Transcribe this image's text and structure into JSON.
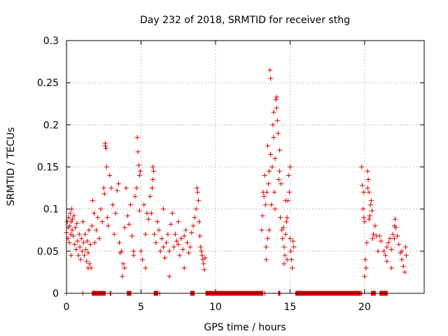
{
  "chart_data": {
    "type": "scatter",
    "title": "Day 232 of 2018, SRMTID for receiver sthg",
    "xlabel": "GPS time / hours",
    "ylabel": "SRMTID / TECUs",
    "xlim": [
      0,
      24
    ],
    "ylim": [
      0,
      0.3
    ],
    "grid": true,
    "marker": "+",
    "color": "#e00000",
    "x_ticks": [
      0,
      5,
      10,
      15,
      20
    ],
    "x_tick_labels": [
      "0",
      "5",
      "10",
      "15",
      "20"
    ],
    "y_ticks": [
      0,
      0.05,
      0.1,
      0.15,
      0.2,
      0.25,
      0.3
    ],
    "y_tick_labels": [
      "0",
      "0.05",
      "0.1",
      "0.15",
      "0.2",
      "0.25",
      "0.3"
    ],
    "series": [
      {
        "name": "SRMTID",
        "points": [
          [
            0.0,
            0.072
          ],
          [
            0.05,
            0.085
          ],
          [
            0.1,
            0.065
          ],
          [
            0.12,
            0.078
          ],
          [
            0.15,
            0.09
          ],
          [
            0.2,
            0.06
          ],
          [
            0.22,
            0.08
          ],
          [
            0.25,
            0.095
          ],
          [
            0.3,
            0.07
          ],
          [
            0.32,
            0.085
          ],
          [
            0.35,
            0.1
          ],
          [
            0.38,
            0.075
          ],
          [
            0.4,
            0.088
          ],
          [
            0.45,
            0.068
          ],
          [
            0.5,
            0.092
          ],
          [
            0.55,
            0.058
          ],
          [
            0.6,
            0.078
          ],
          [
            0.65,
            0.052
          ],
          [
            0.7,
            0.083
          ],
          [
            0.75,
            0.062
          ],
          [
            0.8,
            0.045
          ],
          [
            0.85,
            0.07
          ],
          [
            0.9,
            0.055
          ],
          [
            0.95,
            0.04
          ],
          [
            1.0,
            0.065
          ],
          [
            1.05,
            0.05
          ],
          [
            1.1,
            0.085
          ],
          [
            1.15,
            0.06
          ],
          [
            1.2,
            0.045
          ],
          [
            1.25,
            0.07
          ],
          [
            1.3,
            0.052
          ],
          [
            1.35,
            0.038
          ],
          [
            1.4,
            0.062
          ],
          [
            1.45,
            0.048
          ],
          [
            1.5,
            0.075
          ],
          [
            1.55,
            0.035
          ],
          [
            1.6,
            0.058
          ],
          [
            1.65,
            0.03
          ],
          [
            1.7,
            0.08
          ],
          [
            1.75,
            0.11
          ],
          [
            1.85,
            0.095
          ],
          [
            1.9,
            0.06
          ],
          [
            2.0,
            0.075
          ],
          [
            2.1,
            0.09
          ],
          [
            2.2,
            0.065
          ],
          [
            2.3,
            0.1
          ],
          [
            2.4,
            0.085
          ],
          [
            2.5,
            0.125
          ],
          [
            2.55,
            0.118
          ],
          [
            2.6,
            0.175
          ],
          [
            2.65,
            0.172
          ],
          [
            2.7,
            0.15
          ],
          [
            2.75,
            0.09
          ],
          [
            2.8,
            0.08
          ],
          [
            2.9,
            0.14
          ],
          [
            3.0,
            0.125
          ],
          [
            3.1,
            0.105
          ],
          [
            3.2,
            0.07
          ],
          [
            3.3,
            0.095
          ],
          [
            3.4,
            0.122
          ],
          [
            3.5,
            0.13
          ],
          [
            3.55,
            0.06
          ],
          [
            3.6,
            0.048
          ],
          [
            3.7,
            0.05
          ],
          [
            3.75,
            0.02
          ],
          [
            3.8,
            0.035
          ],
          [
            3.9,
            0.078
          ],
          [
            4.0,
            0.125
          ],
          [
            4.1,
            0.092
          ],
          [
            4.2,
            0.082
          ],
          [
            4.3,
            0.105
          ],
          [
            4.4,
            0.068
          ],
          [
            4.5,
            0.05
          ],
          [
            4.6,
            0.115
          ],
          [
            4.7,
            0.125
          ],
          [
            4.75,
            0.185
          ],
          [
            4.8,
            0.168
          ],
          [
            4.85,
            0.152
          ],
          [
            4.9,
            0.14
          ],
          [
            4.95,
            0.145
          ],
          [
            5.0,
            0.05
          ],
          [
            5.1,
            0.04
          ],
          [
            5.2,
            0.105
          ],
          [
            5.3,
            0.07
          ],
          [
            5.4,
            0.095
          ],
          [
            5.5,
            0.088
          ],
          [
            5.6,
            0.115
          ],
          [
            5.7,
            0.095
          ],
          [
            5.75,
            0.125
          ],
          [
            5.8,
            0.15
          ],
          [
            5.85,
            0.145
          ],
          [
            5.9,
            0.07
          ],
          [
            6.0,
            0.06
          ],
          [
            6.1,
            0.085
          ],
          [
            6.2,
            0.075
          ],
          [
            6.3,
            0.05
          ],
          [
            6.4,
            0.065
          ],
          [
            6.5,
            0.055
          ],
          [
            6.6,
            0.042
          ],
          [
            6.7,
            0.06
          ],
          [
            6.8,
            0.07
          ],
          [
            6.9,
            0.05
          ],
          [
            7.0,
            0.082
          ],
          [
            7.1,
            0.095
          ],
          [
            7.2,
            0.055
          ],
          [
            7.3,
            0.07
          ],
          [
            7.4,
            0.062
          ],
          [
            7.5,
            0.058
          ],
          [
            7.6,
            0.045
          ],
          [
            7.7,
            0.065
          ],
          [
            7.8,
            0.052
          ],
          [
            7.9,
            0.068
          ],
          [
            8.0,
            0.075
          ],
          [
            8.1,
            0.06
          ],
          [
            8.2,
            0.048
          ],
          [
            8.3,
            0.055
          ],
          [
            8.4,
            0.072
          ],
          [
            8.5,
            0.08
          ],
          [
            8.6,
            0.09
          ],
          [
            8.7,
            0.1
          ],
          [
            8.75,
            0.125
          ],
          [
            8.8,
            0.12
          ],
          [
            8.85,
            0.11
          ],
          [
            8.9,
            0.085
          ],
          [
            8.95,
            0.068
          ],
          [
            9.0,
            0.055
          ],
          [
            9.05,
            0.05
          ],
          [
            9.1,
            0.045
          ],
          [
            9.15,
            0.04
          ],
          [
            9.2,
            0.035
          ],
          [
            9.25,
            0.028
          ],
          [
            9.3,
            0.042
          ],
          [
            2.6,
            0.178
          ],
          [
            6.5,
            0.1
          ],
          [
            7.5,
            0.085
          ],
          [
            0.3,
            0.045
          ],
          [
            1.45,
            0.03
          ],
          [
            3.9,
            0.03
          ],
          [
            5.3,
            0.03
          ],
          [
            6.9,
            0.02
          ],
          [
            7.9,
            0.03
          ],
          [
            4.5,
            0.045
          ],
          [
            5.8,
            0.135
          ],
          [
            4.9,
            0.098
          ],
          [
            13.1,
            0.075
          ],
          [
            13.15,
            0.092
          ],
          [
            13.2,
            0.12
          ],
          [
            13.25,
            0.115
          ],
          [
            13.3,
            0.14
          ],
          [
            13.35,
            0.105
          ],
          [
            13.4,
            0.055
          ],
          [
            13.45,
            0.12
          ],
          [
            13.5,
            0.175
          ],
          [
            13.55,
            0.13
          ],
          [
            13.6,
            0.145
          ],
          [
            13.65,
            0.265
          ],
          [
            13.7,
            0.255
          ],
          [
            13.75,
            0.105
          ],
          [
            13.8,
            0.15
          ],
          [
            13.85,
            0.2
          ],
          [
            13.9,
            0.185
          ],
          [
            13.95,
            0.12
          ],
          [
            14.0,
            0.16
          ],
          [
            14.05,
            0.23
          ],
          [
            14.1,
            0.22
          ],
          [
            14.15,
            0.205
          ],
          [
            14.2,
            0.19
          ],
          [
            14.25,
            0.135
          ],
          [
            14.3,
            0.17
          ],
          [
            14.35,
            0.09
          ],
          [
            14.4,
            0.13
          ],
          [
            14.45,
            0.075
          ],
          [
            14.5,
            0.065
          ],
          [
            14.55,
            0.078
          ],
          [
            14.6,
            0.055
          ],
          [
            14.65,
            0.045
          ],
          [
            14.7,
            0.07
          ],
          [
            14.75,
            0.085
          ],
          [
            14.8,
            0.09
          ],
          [
            14.85,
            0.11
          ],
          [
            14.9,
            0.14
          ],
          [
            14.95,
            0.12
          ],
          [
            15.0,
            0.065
          ],
          [
            15.05,
            0.05
          ],
          [
            15.1,
            0.04
          ],
          [
            15.15,
            0.03
          ],
          [
            15.2,
            0.062
          ],
          [
            15.25,
            0.055
          ],
          [
            13.4,
            0.04
          ],
          [
            13.6,
            0.075
          ],
          [
            14.0,
            0.1
          ],
          [
            14.3,
            0.145
          ],
          [
            14.6,
            0.035
          ],
          [
            14.8,
            0.04
          ],
          [
            13.9,
            0.215
          ],
          [
            14.1,
            0.233
          ],
          [
            13.7,
            0.165
          ],
          [
            14.7,
            0.11
          ],
          [
            15.0,
            0.15
          ],
          [
            13.5,
            0.065
          ],
          [
            19.8,
            0.15
          ],
          [
            19.85,
            0.128
          ],
          [
            19.9,
            0.1
          ],
          [
            19.95,
            0.09
          ],
          [
            20.0,
            0.085
          ],
          [
            20.05,
            0.04
          ],
          [
            20.1,
            0.03
          ],
          [
            20.15,
            0.06
          ],
          [
            20.2,
            0.145
          ],
          [
            20.25,
            0.135
          ],
          [
            20.3,
            0.088
          ],
          [
            20.35,
            0.092
          ],
          [
            20.4,
            0.105
          ],
          [
            20.45,
            0.11
          ],
          [
            20.5,
            0.098
          ],
          [
            20.55,
            0.065
          ],
          [
            20.6,
            0.07
          ],
          [
            20.7,
            0.08
          ],
          [
            20.8,
            0.068
          ],
          [
            20.9,
            0.05
          ],
          [
            21.0,
            0.068
          ],
          [
            21.1,
            0.062
          ],
          [
            21.3,
            0.05
          ],
          [
            21.4,
            0.045
          ],
          [
            21.5,
            0.038
          ],
          [
            21.6,
            0.06
          ],
          [
            21.7,
            0.065
          ],
          [
            21.8,
            0.052
          ],
          [
            21.9,
            0.07
          ],
          [
            22.0,
            0.08
          ],
          [
            22.05,
            0.088
          ],
          [
            22.1,
            0.078
          ],
          [
            22.2,
            0.068
          ],
          [
            22.3,
            0.058
          ],
          [
            22.4,
            0.048
          ],
          [
            22.5,
            0.04
          ],
          [
            22.6,
            0.032
          ],
          [
            22.7,
            0.025
          ],
          [
            22.75,
            0.055
          ],
          [
            22.8,
            0.045
          ],
          [
            20.0,
            0.02
          ],
          [
            20.3,
            0.12
          ],
          [
            21.8,
            0.03
          ],
          [
            22.5,
            0.05
          ],
          [
            20.2,
            0.125
          ],
          [
            21.5,
            0.055
          ],
          [
            19.95,
            0.12
          ],
          [
            22.0,
            0.065
          ],
          [
            0.0,
            0.0
          ],
          [
            1.1,
            0.0
          ],
          [
            1.85,
            0.0
          ],
          [
            2.0,
            0.0
          ],
          [
            2.15,
            0.0
          ],
          [
            2.3,
            0.0
          ],
          [
            2.45,
            0.0
          ],
          [
            2.6,
            0.0
          ],
          [
            2.95,
            0.0
          ],
          [
            4.1,
            0.0
          ],
          [
            4.25,
            0.0
          ],
          [
            5.9,
            0.0
          ],
          [
            6.05,
            0.0
          ],
          [
            6.25,
            0.0
          ],
          [
            8.35,
            0.0
          ],
          [
            8.55,
            0.0
          ],
          [
            9.35,
            0.0
          ],
          [
            13.3,
            0.0
          ],
          [
            14.25,
            0.0
          ],
          [
            15.4,
            0.0
          ],
          [
            19.8,
            0.0
          ],
          [
            20.45,
            0.0
          ],
          [
            20.65,
            0.0
          ],
          [
            21.05,
            0.0
          ],
          [
            21.25,
            0.0
          ],
          [
            21.5,
            0.0
          ]
        ],
        "zero_segments": [
          [
            1.7,
            2.6
          ],
          [
            2.9,
            3.0
          ],
          [
            4.05,
            4.35
          ],
          [
            5.85,
            6.15
          ],
          [
            8.3,
            8.6
          ],
          [
            9.35,
            13.2
          ],
          [
            14.2,
            14.35
          ],
          [
            15.35,
            19.75
          ],
          [
            20.45,
            20.75
          ],
          [
            21.0,
            21.55
          ]
        ]
      }
    ]
  }
}
